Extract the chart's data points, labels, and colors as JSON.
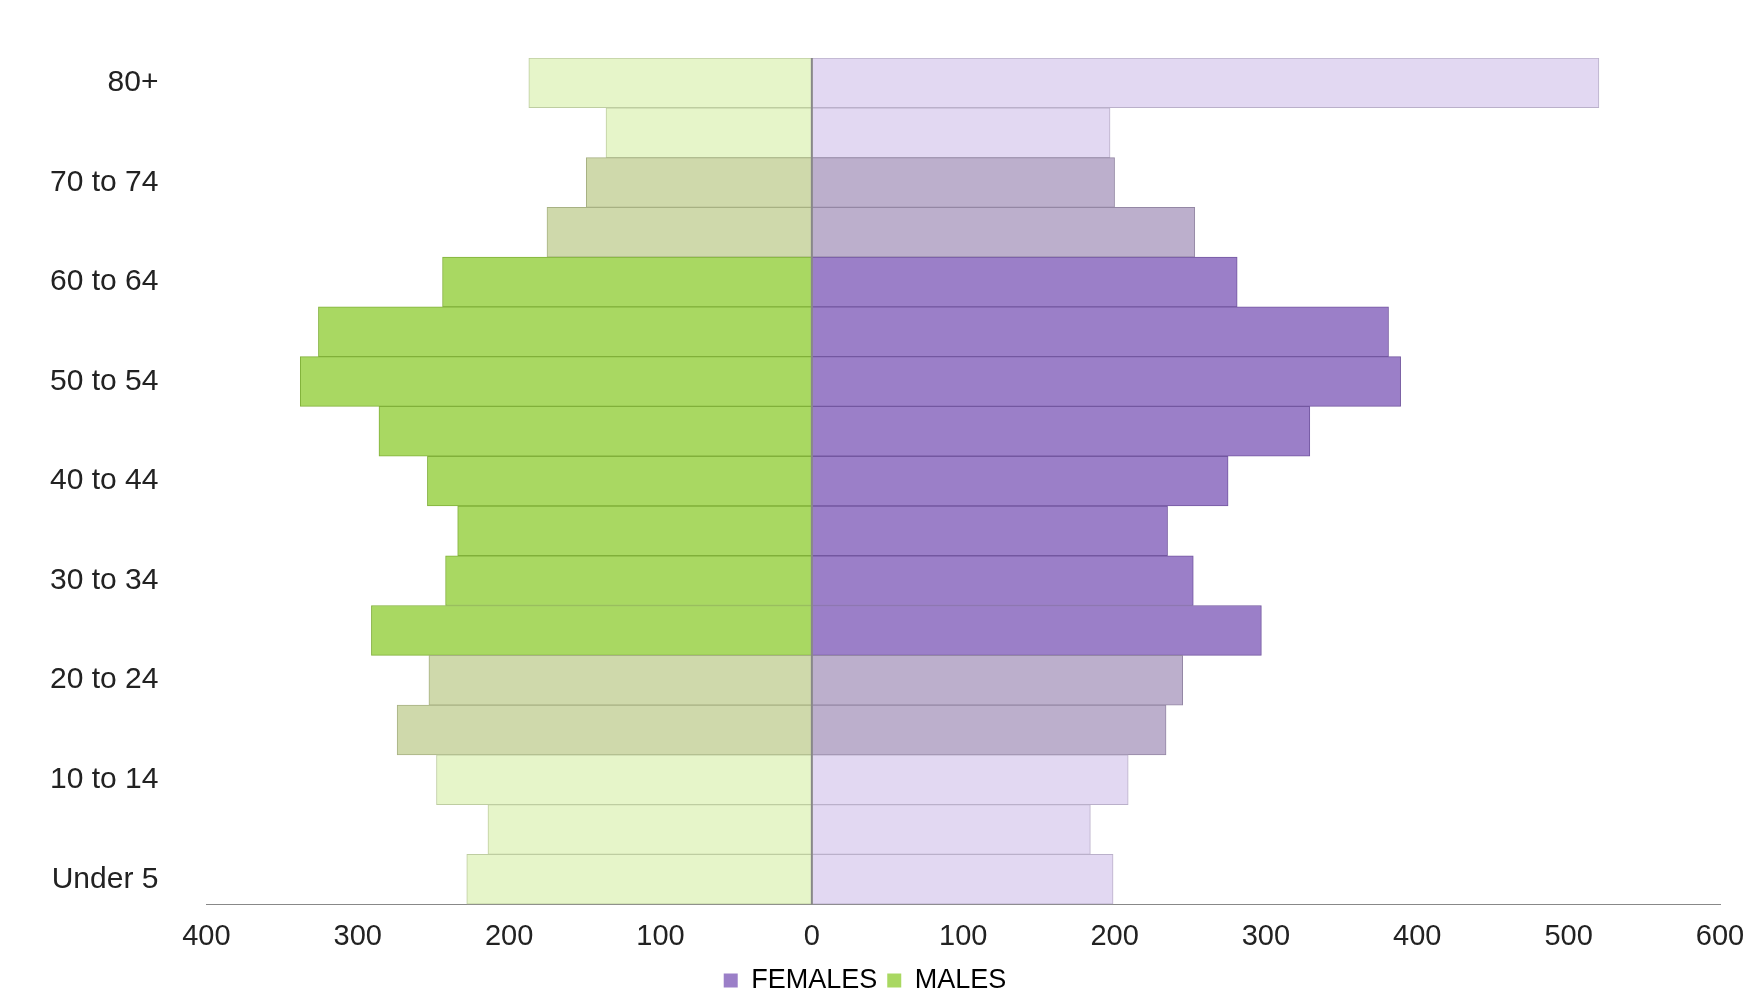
{
  "chart_data": {
    "type": "bar",
    "orientation": "horizontal",
    "categories": [
      "80+",
      null,
      "70 to 74",
      null,
      "60 to 64",
      null,
      "50 to 54",
      null,
      "40 to 44",
      null,
      "30 to 34",
      null,
      "20 to 24",
      null,
      "10 to 14",
      null,
      "Under 5"
    ],
    "series": [
      {
        "name": "FEMALES",
        "color": "#9b7fc8",
        "colors": [
          "#e2d8f2",
          "#e2d8f2",
          "#bcafcc",
          "#bcafcc",
          "#9b7fc8",
          "#9b7fc8",
          "#9b7fc8",
          "#9b7fc8",
          "#9b7fc8",
          "#9b7fc8",
          "#9b7fc8",
          "#9b7fc8",
          "#bcafcc",
          "#bcafcc",
          "#e2d8f2",
          "#e2d8f2",
          "#e2d8f2"
        ],
        "values": [
          520,
          197,
          200,
          253,
          281,
          381,
          389,
          329,
          275,
          235,
          252,
          297,
          245,
          234,
          209,
          184,
          199
        ]
      },
      {
        "name": "MALES",
        "color": "#a9d862",
        "colors": [
          "#e6f5c9",
          "#e6f5c9",
          "#cfd9ab",
          "#cfd9ab",
          "#a9d862",
          "#a9d862",
          "#a9d862",
          "#a9d862",
          "#a9d862",
          "#a9d862",
          "#a9d862",
          "#a9d862",
          "#cfd9ab",
          "#cfd9ab",
          "#e6f5c9",
          "#e6f5c9",
          "#e6f5c9"
        ],
        "values": [
          -187,
          -136,
          -149,
          -175,
          -244,
          -326,
          -338,
          -286,
          -254,
          -234,
          -242,
          -291,
          -253,
          -274,
          -248,
          -214,
          -228
        ]
      }
    ],
    "xlim": [
      -400,
      600
    ],
    "xticks": [
      {
        "value": -400,
        "label": "400"
      },
      {
        "value": -300,
        "label": "300"
      },
      {
        "value": -200,
        "label": "200"
      },
      {
        "value": -100,
        "label": "100"
      },
      0,
      100,
      200,
      300,
      400,
      500,
      600
    ],
    "stacked": true,
    "legend": "bottom"
  }
}
